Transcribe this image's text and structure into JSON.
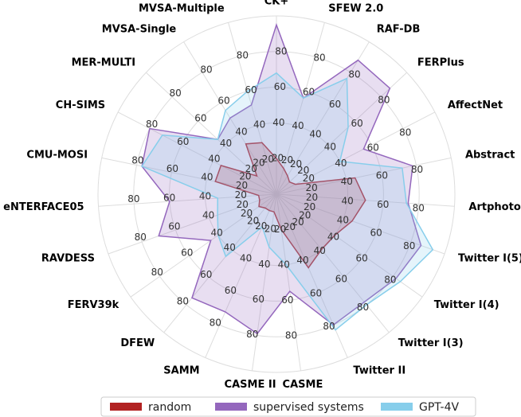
{
  "chart_data": {
    "type": "radar",
    "categories": [
      "CK+",
      "SFEW 2.0",
      "RAF-DB",
      "FERPlus",
      "AffectNet",
      "Abstract",
      "Artphoto",
      "Twitter I(5)",
      "Twitter I(4)",
      "Twitter I(3)",
      "Twitter II",
      "CASME",
      "CASME II",
      "SAMM",
      "DFEW",
      "FERV39k",
      "RAVDESS",
      "eNTERFACE05",
      "CMU-MOSI",
      "CH-SIMS",
      "MER-MULTI",
      "MVSA-Single",
      "MVSA-Multiple"
    ],
    "series": [
      {
        "name": "random",
        "color": "#b22222",
        "values": [
          20,
          15,
          12,
          10,
          12,
          45,
          50,
          45,
          40,
          40,
          45,
          20,
          10,
          10,
          10,
          12,
          10,
          10,
          35,
          35,
          15,
          33,
          30
        ]
      },
      {
        "name": "supervised systems",
        "color": "#9467bd",
        "values": [
          95,
          56,
          88,
          87,
          55,
          78,
          74,
          86,
          82,
          78,
          80,
          55,
          79,
          72,
          75,
          45,
          70,
          60,
          77,
          80,
          45,
          50,
          52
        ]
      },
      {
        "name": "GPT-4V",
        "color": "#87ceeb",
        "values": [
          68,
          56,
          76,
          55,
          40,
          72,
          73,
          93,
          85,
          80,
          83,
          40,
          30,
          20,
          45,
          40,
          35,
          33,
          77,
          72,
          45,
          55,
          60
        ]
      }
    ],
    "rlim": [
      0,
      100
    ],
    "rticks": [
      20,
      40,
      60,
      80
    ],
    "grid": true,
    "legend": "bottom"
  }
}
